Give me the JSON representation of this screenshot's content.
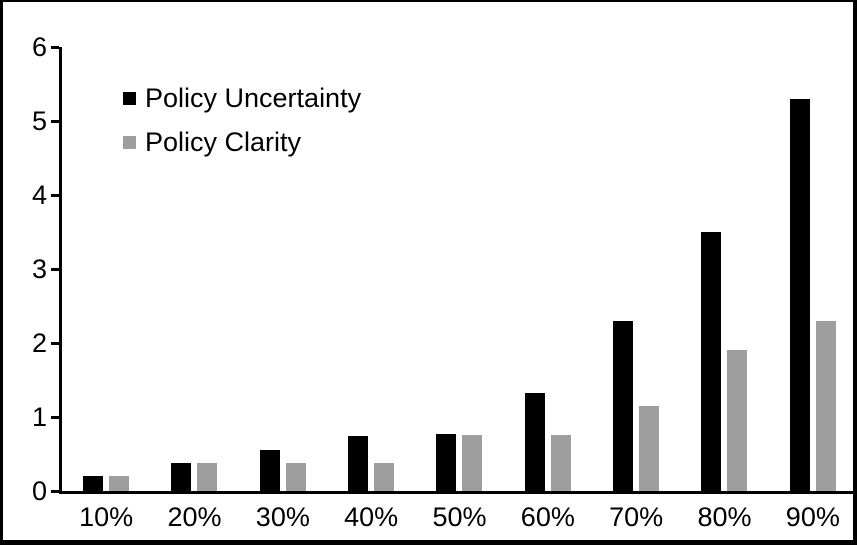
{
  "chart_data": {
    "type": "bar",
    "title": "",
    "xlabel": "",
    "ylabel": "",
    "categories": [
      "10%",
      "20%",
      "30%",
      "40%",
      "50%",
      "60%",
      "70%",
      "80%",
      "90%"
    ],
    "series": [
      {
        "name": "Policy Uncertainty",
        "color": "#000000",
        "values": [
          0.2,
          0.38,
          0.55,
          0.75,
          0.77,
          1.32,
          2.3,
          3.5,
          5.3
        ]
      },
      {
        "name": "Policy Clarity",
        "color": "#9e9e9e",
        "values": [
          0.2,
          0.38,
          0.38,
          0.38,
          0.76,
          0.76,
          1.15,
          1.9,
          2.3
        ]
      }
    ],
    "ylim": [
      0,
      6
    ],
    "y_ticks": [
      0,
      1,
      2,
      3,
      4,
      5,
      6
    ],
    "grid": false,
    "legend_position": "top-left-inside"
  },
  "frame": {
    "border_color": "#000000",
    "background": "#ffffff"
  }
}
